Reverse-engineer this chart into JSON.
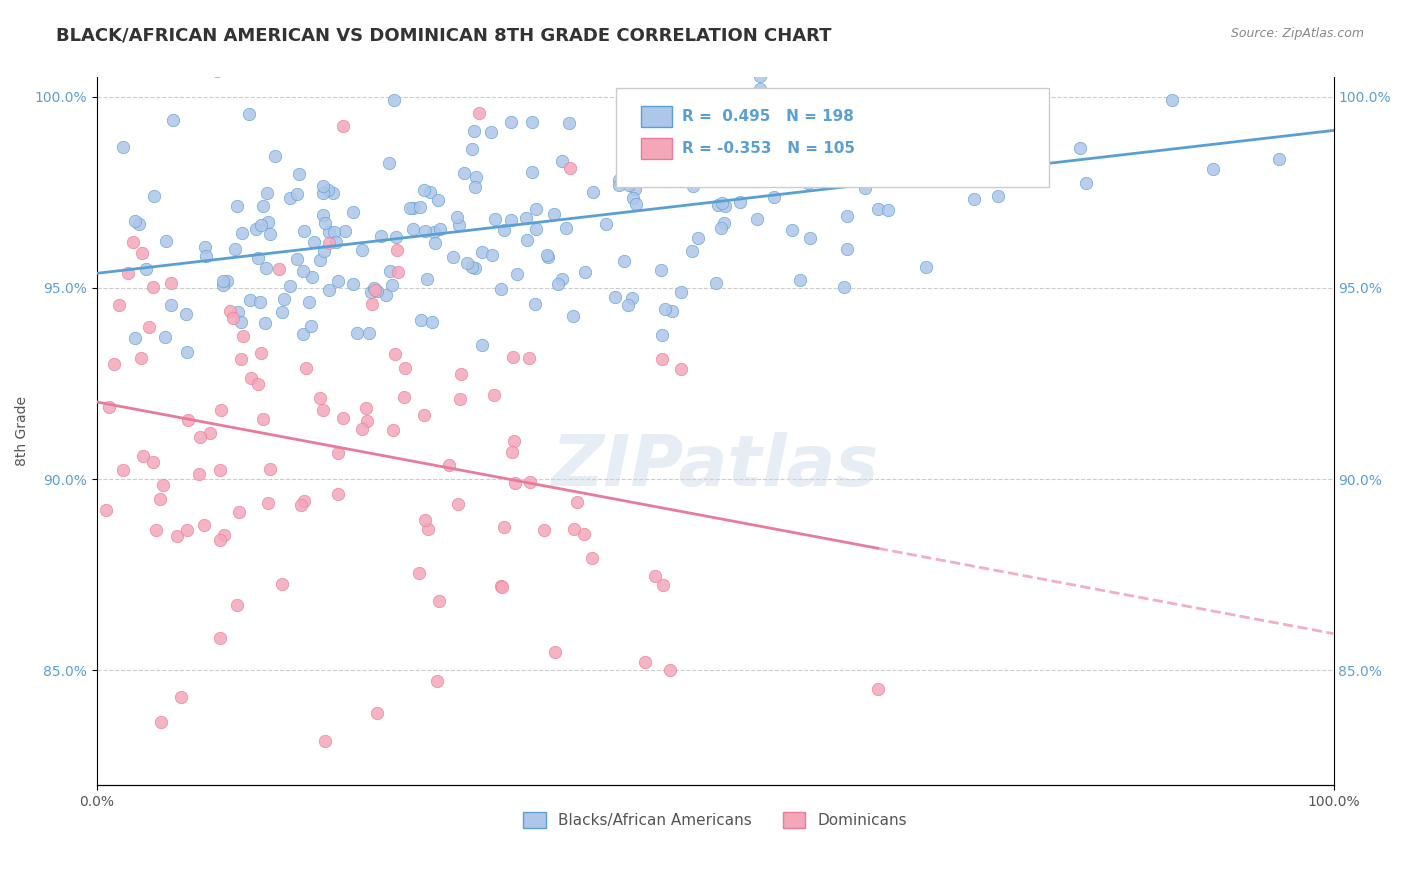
{
  "title": "BLACK/AFRICAN AMERICAN VS DOMINICAN 8TH GRADE CORRELATION CHART",
  "source_text": "Source: ZipAtlas.com",
  "xlabel": "",
  "ylabel": "8th Grade",
  "watermark": "ZIPatlas",
  "blue_R": 0.495,
  "blue_N": 198,
  "pink_R": -0.353,
  "pink_N": 105,
  "blue_color": "#aec6e8",
  "pink_color": "#f4a7b9",
  "blue_line_color": "#5a9fd4",
  "pink_line_color": "#e87a9a",
  "blue_legend_label": "Blacks/African Americans",
  "pink_legend_label": "Dominicans",
  "x_min": 0.0,
  "x_max": 1.0,
  "y_min": 0.82,
  "y_max": 1.005,
  "y_ticks": [
    0.85,
    0.9,
    0.95,
    1.0
  ],
  "y_tick_labels": [
    "85.0%",
    "90.0%",
    "95.0%",
    "100.0%"
  ],
  "x_tick_labels": [
    "0.0%",
    "100.0%"
  ],
  "background_color": "#ffffff",
  "grid_color": "#cccccc",
  "title_fontsize": 13,
  "axis_label_fontsize": 10,
  "tick_fontsize": 10,
  "legend_fontsize": 11
}
